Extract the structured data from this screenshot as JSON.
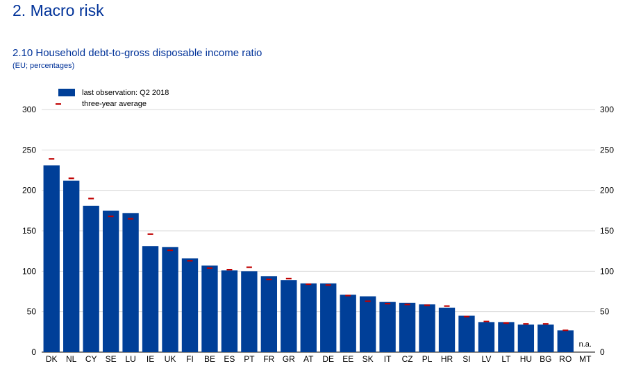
{
  "page": {
    "section_title": "2. Macro risk",
    "chart_title": "2.10 Household debt-to-gross disposable income ratio",
    "chart_subtitle": "(EU; percentages)"
  },
  "colors": {
    "bar": "#003f98",
    "avg": "#c00000",
    "grid": "#d9d9d9",
    "axis": "#000000"
  },
  "chart_data": {
    "type": "bar",
    "title": "2.10 Household debt-to-gross disposable income ratio",
    "subtitle": "(EU; percentages)",
    "xlabel": "",
    "ylabel": "",
    "ylim": [
      0,
      300
    ],
    "yticks": [
      0,
      50,
      100,
      150,
      200,
      250,
      300
    ],
    "yticks_right": true,
    "grid": true,
    "legend_position": "top-left",
    "categories": [
      "DK",
      "NL",
      "CY",
      "SE",
      "LU",
      "IE",
      "UK",
      "FI",
      "BE",
      "ES",
      "PT",
      "FR",
      "GR",
      "AT",
      "DE",
      "EE",
      "SK",
      "IT",
      "CZ",
      "PL",
      "HR",
      "SI",
      "LV",
      "LT",
      "HU",
      "BG",
      "RO",
      "MT"
    ],
    "series": [
      {
        "name": "last observation: Q2 2018",
        "kind": "bar",
        "values": [
          231,
          212,
          181,
          175,
          172,
          131,
          130,
          116,
          107,
          101,
          100,
          94,
          89,
          85,
          85,
          71,
          69,
          62,
          61,
          59,
          55,
          45,
          37,
          37,
          34,
          34,
          27,
          null
        ]
      },
      {
        "name": "three-year average",
        "kind": "marker",
        "values": [
          239,
          215,
          190,
          168,
          165,
          146,
          126,
          113,
          104,
          102,
          105,
          90,
          91,
          84,
          83,
          70,
          63,
          60,
          59,
          58,
          57,
          44,
          38,
          36,
          35,
          35,
          27,
          null
        ]
      }
    ],
    "annotations": [
      {
        "category": "MT",
        "text": "n.a."
      }
    ]
  }
}
